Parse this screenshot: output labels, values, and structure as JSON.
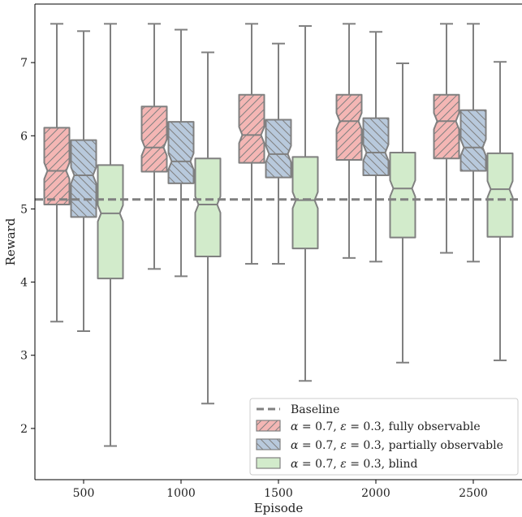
{
  "chart_data": {
    "type": "boxplot",
    "xlabel": "Episode",
    "ylabel": "Reward",
    "categories": [
      "500",
      "1000",
      "1500",
      "2000",
      "2500"
    ],
    "ylim": [
      1.3,
      7.8
    ],
    "yticks": [
      2,
      3,
      4,
      5,
      6,
      7
    ],
    "baseline": {
      "label": "Baseline",
      "value": 5.13,
      "color": "#808080"
    },
    "legend_position": "lower right",
    "series": [
      {
        "name": "α = 0.7, ε = 0.3, fully observable",
        "label_parts": [
          "α",
          " = 0.7, ",
          "ε",
          " = 0.3, fully observable"
        ],
        "color": "#f4b6b4",
        "hatch": "diagonal-forward",
        "boxes": [
          {
            "whislo": 3.46,
            "q1": 5.06,
            "med": 5.52,
            "q3": 6.11,
            "whishi": 7.53
          },
          {
            "whislo": 4.18,
            "q1": 5.51,
            "med": 5.84,
            "q3": 6.4,
            "whishi": 7.53
          },
          {
            "whislo": 4.25,
            "q1": 5.63,
            "med": 6.01,
            "q3": 6.56,
            "whishi": 7.53
          },
          {
            "whislo": 4.33,
            "q1": 5.67,
            "med": 6.2,
            "q3": 6.56,
            "whishi": 7.53
          },
          {
            "whislo": 4.4,
            "q1": 5.69,
            "med": 6.2,
            "q3": 6.56,
            "whishi": 7.53
          }
        ]
      },
      {
        "name": "α = 0.7, ε = 0.3, partially observable",
        "label_parts": [
          "α",
          " = 0.7, ",
          "ε",
          " = 0.3, partially observable"
        ],
        "color": "#b8c9dc",
        "hatch": "diagonal-back",
        "boxes": [
          {
            "whislo": 3.33,
            "q1": 4.89,
            "med": 5.46,
            "q3": 5.94,
            "whishi": 7.43
          },
          {
            "whislo": 4.08,
            "q1": 5.35,
            "med": 5.65,
            "q3": 6.19,
            "whishi": 7.45
          },
          {
            "whislo": 4.25,
            "q1": 5.43,
            "med": 5.75,
            "q3": 6.22,
            "whishi": 7.26
          },
          {
            "whislo": 4.28,
            "q1": 5.46,
            "med": 5.77,
            "q3": 6.24,
            "whishi": 7.42
          },
          {
            "whislo": 4.28,
            "q1": 5.52,
            "med": 5.84,
            "q3": 6.35,
            "whishi": 7.53
          }
        ]
      },
      {
        "name": "α = 0.7, ε = 0.3, blind",
        "label_parts": [
          "α",
          " = 0.7, ",
          "ε",
          " = 0.3, blind"
        ],
        "color": "#d2ebcb",
        "hatch": "none",
        "boxes": [
          {
            "whislo": 1.76,
            "q1": 4.05,
            "med": 4.94,
            "q3": 5.6,
            "whishi": 7.53
          },
          {
            "whislo": 2.34,
            "q1": 4.35,
            "med": 5.06,
            "q3": 5.69,
            "whishi": 7.14
          },
          {
            "whislo": 2.65,
            "q1": 4.46,
            "med": 5.12,
            "q3": 5.71,
            "whishi": 7.5
          },
          {
            "whislo": 2.9,
            "q1": 4.61,
            "med": 5.28,
            "q3": 5.77,
            "whishi": 6.99
          },
          {
            "whislo": 2.93,
            "q1": 4.62,
            "med": 5.27,
            "q3": 5.76,
            "whishi": 7.01
          }
        ]
      }
    ]
  }
}
